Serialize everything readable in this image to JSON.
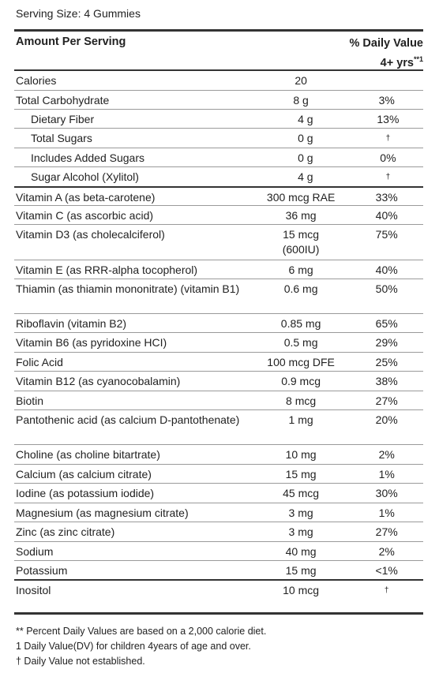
{
  "serving_size": "Serving Size: 4 Gummies",
  "header": {
    "amount_per_serving": "Amount Per Serving",
    "daily_value_line1": "% Daily Value",
    "daily_value_line2": "4+ yrs",
    "daily_value_sup": "**1"
  },
  "rows": [
    {
      "name": "Calories",
      "amount": "20",
      "dv": "",
      "indent": false,
      "dagger": false,
      "height": 24,
      "top": "none"
    },
    {
      "name": "Total Carbohydrate",
      "amount": "8 g",
      "dv": "3%",
      "indent": false,
      "dagger": false,
      "height": 24,
      "top": "thin"
    },
    {
      "name": "Dietary Fiber",
      "amount": "4 g",
      "dv": "13%",
      "indent": true,
      "dagger": false,
      "height": 24,
      "top": "thin"
    },
    {
      "name": "Total Sugars",
      "amount": "0 g",
      "dv": "†",
      "indent": true,
      "dagger": true,
      "height": 25,
      "top": "thin"
    },
    {
      "name": "Includes Added Sugars",
      "amount": "0 g",
      "dv": "0%",
      "indent": true,
      "dagger": false,
      "height": 24,
      "top": "thin"
    },
    {
      "name": "Sugar Alcohol (Xylitol)",
      "amount": "4 g",
      "dv": "†",
      "indent": true,
      "dagger": true,
      "height": 25,
      "top": "thin"
    },
    {
      "name": "Vitamin A (as beta-carotene)",
      "amount": "300 mcg RAE",
      "dv": "33%",
      "indent": false,
      "dagger": false,
      "height": 24,
      "top": "thick"
    },
    {
      "name": "Vitamin C (as ascorbic acid)",
      "amount": "36 mg",
      "dv": "40%",
      "indent": false,
      "dagger": false,
      "height": 24,
      "top": "thin"
    },
    {
      "name": "Vitamin D3 (as cholecalciferol)",
      "amount": "15 mcg (600IU)",
      "dv": "75%",
      "indent": false,
      "dagger": false,
      "height": 45,
      "top": "thin"
    },
    {
      "name": "Vitamin E (as RRR-alpha tocopherol)",
      "amount": "6 mg",
      "dv": "40%",
      "indent": false,
      "dagger": false,
      "height": 24,
      "top": "thin"
    },
    {
      "name": "Thiamin (as thiamin mononitrate) (vitamin B1)",
      "amount": "0.6 mg",
      "dv": "50%",
      "indent": false,
      "dagger": false,
      "height": 44,
      "top": "thin"
    },
    {
      "name": "Riboflavin (vitamin B2)",
      "amount": "0.85 mg",
      "dv": "65%",
      "indent": false,
      "dagger": false,
      "height": 24,
      "top": "thin"
    },
    {
      "name": "Vitamin B6 (as pyridoxine HCI)",
      "amount": "0.5 mg",
      "dv": "29%",
      "indent": false,
      "dagger": false,
      "height": 25,
      "top": "thin"
    },
    {
      "name": "Folic Acid",
      "amount": "100 mcg DFE",
      "dv": "25%",
      "indent": false,
      "dagger": false,
      "height": 24,
      "top": "thin"
    },
    {
      "name": "Vitamin B12 (as cyanocobalamin)",
      "amount": "0.9 mcg",
      "dv": "38%",
      "indent": false,
      "dagger": false,
      "height": 25,
      "top": "thin"
    },
    {
      "name": "Biotin",
      "amount": "8 mcg",
      "dv": "27%",
      "indent": false,
      "dagger": false,
      "height": 24,
      "top": "thin"
    },
    {
      "name": "Pantothenic acid (as calcium D-pantothenate)",
      "amount": "1 mg",
      "dv": "20%",
      "indent": false,
      "dagger": false,
      "height": 44,
      "top": "thin"
    },
    {
      "name": "Choline (as choline bitartrate)",
      "amount": "10 mg",
      "dv": "2%",
      "indent": false,
      "dagger": false,
      "height": 25,
      "top": "thin"
    },
    {
      "name": "Calcium (as calcium citrate)",
      "amount": "15 mg",
      "dv": "1%",
      "indent": false,
      "dagger": false,
      "height": 24,
      "top": "thin"
    },
    {
      "name": "Iodine (as potassium iodide)",
      "amount": "45 mcg",
      "dv": "30%",
      "indent": false,
      "dagger": false,
      "height": 25,
      "top": "thin"
    },
    {
      "name": "Magnesium (as magnesium citrate)",
      "amount": "3 mg",
      "dv": "1%",
      "indent": false,
      "dagger": false,
      "height": 24,
      "top": "thin"
    },
    {
      "name": "Zinc (as zinc citrate)",
      "amount": "3 mg",
      "dv": "27%",
      "indent": false,
      "dagger": false,
      "height": 25,
      "top": "thin"
    },
    {
      "name": "Sodium",
      "amount": "40 mg",
      "dv": "2%",
      "indent": false,
      "dagger": false,
      "height": 24,
      "top": "thin"
    },
    {
      "name": "Potassium",
      "amount": "15 mg",
      "dv": "<1%",
      "indent": false,
      "dagger": false,
      "height": 24,
      "top": "thin"
    },
    {
      "name": "Inositol",
      "amount": "10 mcg",
      "dv": "†",
      "indent": false,
      "dagger": true,
      "height": 27,
      "top": "thick"
    }
  ],
  "footnotes": [
    "** Percent Daily Values are based on a 2,000 calorie diet.",
    "1 Daily Value(DV) for children 4years of age and over.",
    "† Daily Value not established."
  ]
}
